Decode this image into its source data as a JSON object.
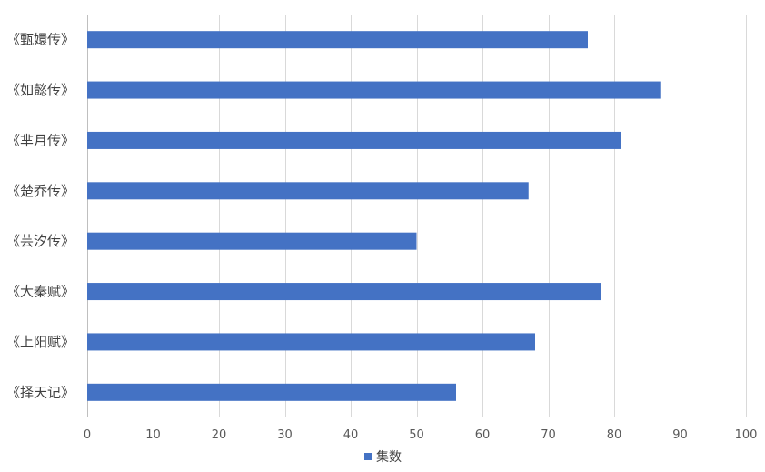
{
  "chart_data": {
    "type": "bar",
    "orientation": "horizontal",
    "categories": [
      "《甄嬛传》",
      "《如懿传》",
      "《芈月传》",
      "《楚乔传》",
      "《芸汐传》",
      "《大秦赋》",
      "《上阳赋》",
      "《择天记》"
    ],
    "series": [
      {
        "name": "集数",
        "values": [
          76,
          87,
          81,
          67,
          50,
          78,
          68,
          56
        ],
        "color": "#4472c4"
      }
    ],
    "xlim": [
      0,
      100
    ],
    "xticks": [
      0,
      10,
      20,
      30,
      40,
      50,
      60,
      70,
      80,
      90,
      100
    ],
    "grid": "vertical",
    "legend": "bottom",
    "title": "",
    "xlabel": "",
    "ylabel": ""
  }
}
